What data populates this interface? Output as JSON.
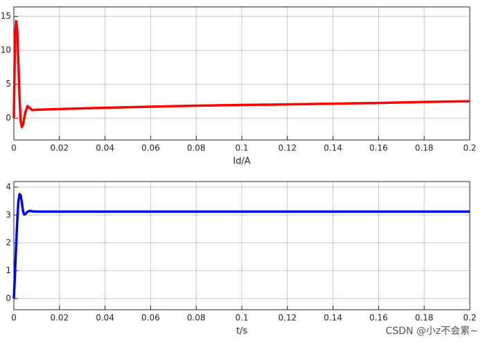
{
  "chart_data": [
    {
      "type": "line",
      "xlabel": "Id/A",
      "x": [
        0,
        0.0005,
        0.001,
        0.0015,
        0.002,
        0.0025,
        0.003,
        0.0035,
        0.004,
        0.005,
        0.006,
        0.007,
        0.008,
        0.01,
        0.02,
        0.04,
        0.06,
        0.08,
        0.1,
        0.12,
        0.14,
        0.16,
        0.18,
        0.2
      ],
      "values": [
        0,
        12,
        14.3,
        13,
        8,
        3,
        -0.5,
        -1.3,
        -1,
        0.8,
        1.8,
        1.5,
        1.2,
        1.25,
        1.35,
        1.55,
        1.7,
        1.85,
        1.95,
        2.05,
        2.15,
        2.25,
        2.4,
        2.5
      ],
      "color": "#ff0000",
      "xlim": [
        0,
        0.2
      ],
      "xticks": [
        0,
        0.02,
        0.04,
        0.06,
        0.08,
        0.1,
        0.12,
        0.14,
        0.16,
        0.18,
        0.2
      ],
      "ylim": [
        -3.2,
        16.4
      ],
      "yticks": [
        0,
        5,
        10,
        15
      ],
      "grid": true
    },
    {
      "type": "line",
      "xlabel": "t/s",
      "x": [
        0,
        0.0005,
        0.001,
        0.0015,
        0.002,
        0.0025,
        0.003,
        0.0035,
        0.004,
        0.0045,
        0.005,
        0.006,
        0.007,
        0.008,
        0.01,
        0.05,
        0.1,
        0.15,
        0.2
      ],
      "values": [
        0,
        0.9,
        1.9,
        2.8,
        3.5,
        3.75,
        3.7,
        3.45,
        3.15,
        3.02,
        3.03,
        3.12,
        3.15,
        3.13,
        3.12,
        3.12,
        3.12,
        3.12,
        3.12
      ],
      "color": "#0000ff",
      "xlim": [
        0,
        0.2
      ],
      "xticks": [
        0,
        0.02,
        0.04,
        0.06,
        0.08,
        0.1,
        0.12,
        0.14,
        0.16,
        0.18,
        0.2
      ],
      "ylim": [
        -0.4,
        4.2
      ],
      "yticks": [
        0,
        1,
        2,
        3,
        4
      ],
      "grid": true
    }
  ],
  "watermark": "CSDN @小z不会累~"
}
